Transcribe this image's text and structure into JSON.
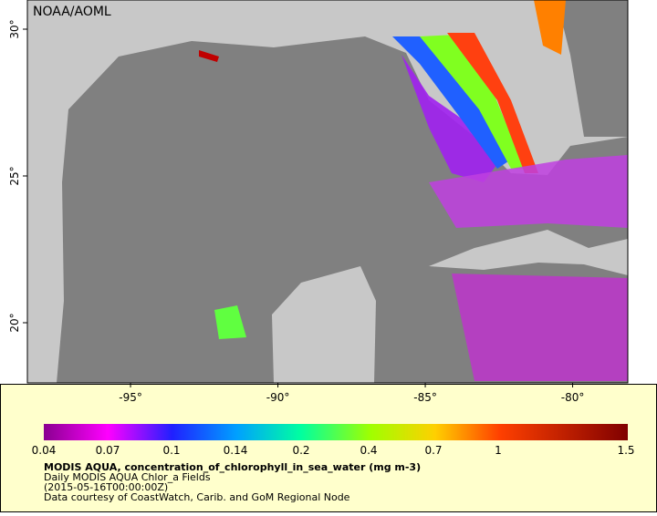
{
  "header": {
    "title": "NOAA/AOML"
  },
  "map": {
    "lon_ticks": [
      {
        "value": -95,
        "label": "-95°"
      },
      {
        "value": -90,
        "label": "-90°"
      },
      {
        "value": -85,
        "label": "-85°"
      },
      {
        "value": -80,
        "label": "-80°"
      }
    ],
    "lat_ticks": [
      {
        "value": 30,
        "label": "30°"
      },
      {
        "value": 25,
        "label": "25°"
      },
      {
        "value": 20,
        "label": "20°"
      }
    ]
  },
  "colorbar": {
    "labels": [
      "0.04",
      "0.07",
      "0.1",
      "0.14",
      "0.2",
      "0.4",
      "0.7",
      "1",
      "1.5"
    ]
  },
  "caption": {
    "title": "MODIS AQUA, concentration_of_chlorophyll_in_sea_water (mg m-3)",
    "line1": "Daily MODIS AQUA Chlor_a Fields",
    "line2": "(2015-05-16T00:00:00Z)",
    "line3": "Data courtesy of CoastWatch, Carib. and GoM Regional Node"
  }
}
